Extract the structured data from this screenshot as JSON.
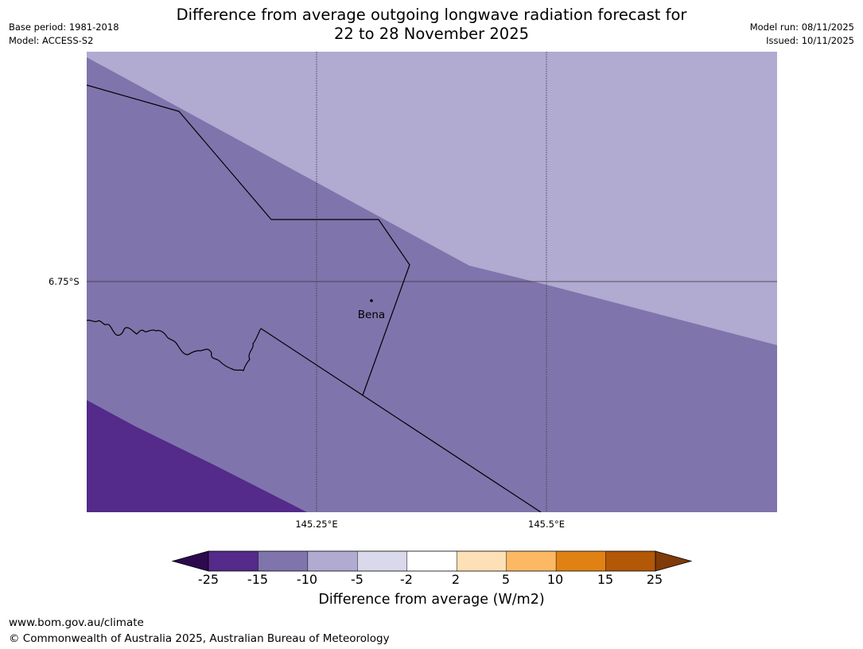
{
  "title": {
    "line1": "Difference from average outgoing longwave radiation forecast for",
    "line2": "22 to 28 November 2025"
  },
  "meta_left": {
    "base_period": "Base period: 1981-2018",
    "model": "Model: ACCESS-S2"
  },
  "meta_right": {
    "model_run": "Model run: 08/11/2025",
    "issued": "Issued: 10/11/2025"
  },
  "map": {
    "lat_label": "6.75°S",
    "lon_labels": [
      "145.25°E",
      "145.5°E"
    ],
    "place_name": "Bena",
    "region_colors": {
      "minus_5_to_minus_10": "#b1aad1",
      "minus_10_to_minus_15": "#8074ac",
      "minus_15_to_minus_25": "#542a8a"
    },
    "line_color": "#000000",
    "gridline_color": "#333333"
  },
  "colorbar": {
    "ticks": [
      "-25",
      "-15",
      "-10",
      "-5",
      "-2",
      "2",
      "5",
      "10",
      "15",
      "25"
    ],
    "colors": [
      "#542a8a",
      "#8074ac",
      "#b1aad1",
      "#d9d9eb",
      "#ffffff",
      "#fee0b6",
      "#fdb863",
      "#e08213",
      "#b35807"
    ],
    "under_color": "#2d0a4e",
    "over_color": "#7f3b08",
    "label": "Difference from average (W/m2)"
  },
  "footer": {
    "url": "www.bom.gov.au/climate",
    "copyright": "© Commonwealth of Australia 2025, Australian Bureau of Meteorology"
  }
}
